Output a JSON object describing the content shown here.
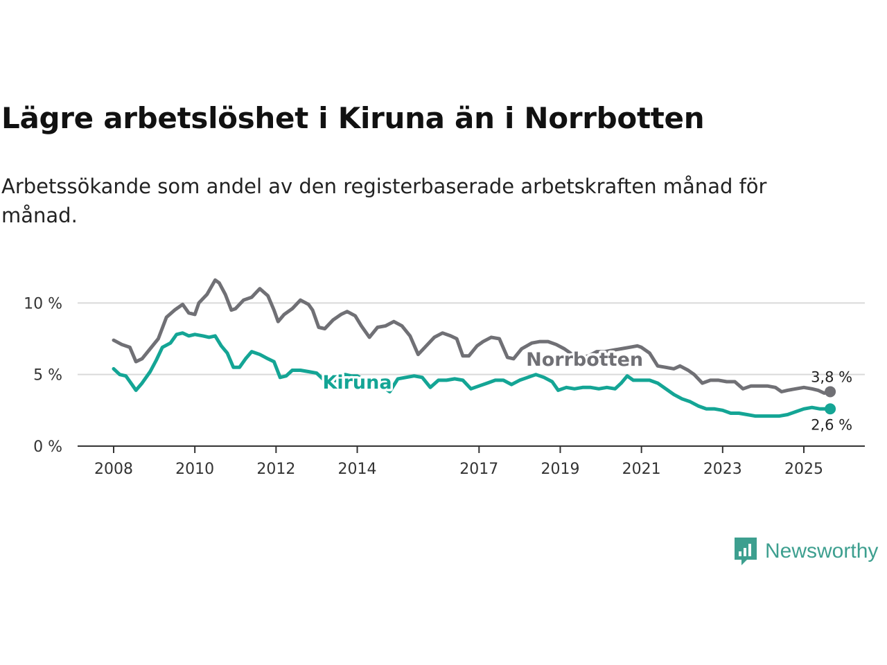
{
  "title": "Lägre arbetslöshet i Kiruna än i Norrbotten",
  "subtitle": "Arbetssökande som andel av den registerbaserade arbetskraften månad för månad.",
  "brand": "Newsworthy",
  "colors": {
    "norrbotten": "#707075",
    "kiruna": "#14a595",
    "grid": "#d9d9d9",
    "axis": "#333333",
    "brand": "#3d9f8f"
  },
  "chart_data": {
    "type": "line",
    "title": "Lägre arbetslöshet i Kiruna än i Norrbotten",
    "xlabel": "",
    "ylabel": "",
    "ylim": [
      0,
      12
    ],
    "xlim": [
      2007.6,
      2026.0
    ],
    "yticks": [
      {
        "value": 0,
        "label": "0 %"
      },
      {
        "value": 5,
        "label": "5 %"
      },
      {
        "value": 10,
        "label": "10 %"
      }
    ],
    "xticks": [
      {
        "value": 2008,
        "label": "2008"
      },
      {
        "value": 2010,
        "label": "2010"
      },
      {
        "value": 2012,
        "label": "2012"
      },
      {
        "value": 2014,
        "label": "2014"
      },
      {
        "value": 2017,
        "label": "2017"
      },
      {
        "value": 2019,
        "label": "2019"
      },
      {
        "value": 2021,
        "label": "2021"
      },
      {
        "value": 2023,
        "label": "2023"
      },
      {
        "value": 2025,
        "label": "2025"
      }
    ],
    "series": [
      {
        "name": "Norrbotten",
        "color": "#707075",
        "end_label": "3,8 %",
        "points": [
          [
            2008.0,
            7.4
          ],
          [
            2008.2,
            7.1
          ],
          [
            2008.4,
            6.9
          ],
          [
            2008.55,
            5.9
          ],
          [
            2008.7,
            6.1
          ],
          [
            2008.9,
            6.8
          ],
          [
            2009.1,
            7.5
          ],
          [
            2009.3,
            9.0
          ],
          [
            2009.5,
            9.5
          ],
          [
            2009.7,
            9.9
          ],
          [
            2009.85,
            9.3
          ],
          [
            2010.0,
            9.2
          ],
          [
            2010.1,
            10.0
          ],
          [
            2010.3,
            10.6
          ],
          [
            2010.5,
            11.6
          ],
          [
            2010.6,
            11.4
          ],
          [
            2010.75,
            10.6
          ],
          [
            2010.9,
            9.5
          ],
          [
            2011.0,
            9.6
          ],
          [
            2011.2,
            10.2
          ],
          [
            2011.4,
            10.4
          ],
          [
            2011.6,
            11.0
          ],
          [
            2011.8,
            10.5
          ],
          [
            2011.95,
            9.5
          ],
          [
            2012.05,
            8.7
          ],
          [
            2012.2,
            9.2
          ],
          [
            2012.4,
            9.6
          ],
          [
            2012.6,
            10.2
          ],
          [
            2012.8,
            9.9
          ],
          [
            2012.9,
            9.5
          ],
          [
            2013.05,
            8.3
          ],
          [
            2013.2,
            8.2
          ],
          [
            2013.4,
            8.8
          ],
          [
            2013.6,
            9.2
          ],
          [
            2013.75,
            9.4
          ],
          [
            2013.95,
            9.1
          ],
          [
            2014.1,
            8.4
          ],
          [
            2014.3,
            7.6
          ],
          [
            2014.5,
            8.3
          ],
          [
            2014.7,
            8.4
          ],
          [
            2014.9,
            8.7
          ],
          [
            2015.1,
            8.4
          ],
          [
            2015.3,
            7.7
          ],
          [
            2015.5,
            6.4
          ],
          [
            2015.7,
            7.0
          ],
          [
            2015.9,
            7.6
          ],
          [
            2016.1,
            7.9
          ],
          [
            2016.3,
            7.7
          ],
          [
            2016.45,
            7.5
          ],
          [
            2016.6,
            6.3
          ],
          [
            2016.75,
            6.3
          ],
          [
            2016.95,
            7.0
          ],
          [
            2017.1,
            7.3
          ],
          [
            2017.3,
            7.6
          ],
          [
            2017.5,
            7.5
          ],
          [
            2017.7,
            6.2
          ],
          [
            2017.85,
            6.1
          ],
          [
            2018.05,
            6.8
          ],
          [
            2018.3,
            7.2
          ],
          [
            2018.5,
            7.3
          ],
          [
            2018.7,
            7.3
          ],
          [
            2018.9,
            7.1
          ],
          [
            2019.1,
            6.8
          ],
          [
            2019.3,
            6.4
          ],
          [
            2019.5,
            6.2
          ],
          [
            2019.7,
            6.3
          ],
          [
            2019.9,
            6.6
          ],
          [
            2020.1,
            6.6
          ],
          [
            2020.3,
            6.7
          ],
          [
            2020.5,
            6.8
          ],
          [
            2020.7,
            6.9
          ],
          [
            2020.9,
            7.0
          ],
          [
            2021.0,
            6.9
          ],
          [
            2021.2,
            6.5
          ],
          [
            2021.4,
            5.6
          ],
          [
            2021.6,
            5.5
          ],
          [
            2021.8,
            5.4
          ],
          [
            2021.95,
            5.6
          ],
          [
            2022.15,
            5.3
          ],
          [
            2022.3,
            5.0
          ],
          [
            2022.5,
            4.4
          ],
          [
            2022.7,
            4.6
          ],
          [
            2022.9,
            4.6
          ],
          [
            2023.1,
            4.5
          ],
          [
            2023.3,
            4.5
          ],
          [
            2023.5,
            4.0
          ],
          [
            2023.7,
            4.2
          ],
          [
            2023.9,
            4.2
          ],
          [
            2024.1,
            4.2
          ],
          [
            2024.3,
            4.1
          ],
          [
            2024.45,
            3.8
          ],
          [
            2024.6,
            3.9
          ],
          [
            2024.8,
            4.0
          ],
          [
            2025.0,
            4.1
          ],
          [
            2025.2,
            4.0
          ],
          [
            2025.35,
            3.9
          ],
          [
            2025.5,
            3.7
          ],
          [
            2025.65,
            3.8
          ]
        ]
      },
      {
        "name": "Kiruna",
        "color": "#14a595",
        "end_label": "2,6 %",
        "points": [
          [
            2008.0,
            5.4
          ],
          [
            2008.15,
            5.0
          ],
          [
            2008.3,
            4.9
          ],
          [
            2008.45,
            4.3
          ],
          [
            2008.55,
            3.9
          ],
          [
            2008.7,
            4.4
          ],
          [
            2008.9,
            5.2
          ],
          [
            2009.05,
            6.0
          ],
          [
            2009.2,
            6.9
          ],
          [
            2009.4,
            7.2
          ],
          [
            2009.55,
            7.8
          ],
          [
            2009.7,
            7.9
          ],
          [
            2009.85,
            7.7
          ],
          [
            2010.0,
            7.8
          ],
          [
            2010.2,
            7.7
          ],
          [
            2010.35,
            7.6
          ],
          [
            2010.5,
            7.7
          ],
          [
            2010.65,
            7.0
          ],
          [
            2010.8,
            6.5
          ],
          [
            2010.95,
            5.5
          ],
          [
            2011.1,
            5.5
          ],
          [
            2011.25,
            6.1
          ],
          [
            2011.4,
            6.6
          ],
          [
            2011.6,
            6.4
          ],
          [
            2011.8,
            6.1
          ],
          [
            2011.95,
            5.9
          ],
          [
            2012.1,
            4.8
          ],
          [
            2012.25,
            4.9
          ],
          [
            2012.4,
            5.3
          ],
          [
            2012.6,
            5.3
          ],
          [
            2012.8,
            5.2
          ],
          [
            2013.0,
            5.1
          ],
          [
            2013.15,
            4.7
          ],
          [
            2013.3,
            4.2
          ],
          [
            2013.5,
            4.7
          ],
          [
            2013.7,
            5.0
          ],
          [
            2013.85,
            4.9
          ],
          [
            2014.0,
            4.9
          ],
          [
            2014.2,
            4.6
          ],
          [
            2014.4,
            4.7
          ],
          [
            2014.6,
            4.2
          ],
          [
            2014.8,
            3.8
          ],
          [
            2015.0,
            4.7
          ],
          [
            2015.2,
            4.8
          ],
          [
            2015.4,
            4.9
          ],
          [
            2015.6,
            4.8
          ],
          [
            2015.8,
            4.1
          ],
          [
            2016.0,
            4.6
          ],
          [
            2016.2,
            4.6
          ],
          [
            2016.4,
            4.7
          ],
          [
            2016.6,
            4.6
          ],
          [
            2016.8,
            4.0
          ],
          [
            2017.0,
            4.2
          ],
          [
            2017.2,
            4.4
          ],
          [
            2017.4,
            4.6
          ],
          [
            2017.6,
            4.6
          ],
          [
            2017.8,
            4.3
          ],
          [
            2018.0,
            4.6
          ],
          [
            2018.2,
            4.8
          ],
          [
            2018.4,
            5.0
          ],
          [
            2018.6,
            4.8
          ],
          [
            2018.8,
            4.5
          ],
          [
            2018.95,
            3.9
          ],
          [
            2019.15,
            4.1
          ],
          [
            2019.35,
            4.0
          ],
          [
            2019.55,
            4.1
          ],
          [
            2019.75,
            4.1
          ],
          [
            2019.95,
            4.0
          ],
          [
            2020.15,
            4.1
          ],
          [
            2020.35,
            4.0
          ],
          [
            2020.5,
            4.4
          ],
          [
            2020.65,
            4.9
          ],
          [
            2020.8,
            4.6
          ],
          [
            2021.0,
            4.6
          ],
          [
            2021.2,
            4.6
          ],
          [
            2021.4,
            4.4
          ],
          [
            2021.6,
            4.0
          ],
          [
            2021.8,
            3.6
          ],
          [
            2022.0,
            3.3
          ],
          [
            2022.2,
            3.1
          ],
          [
            2022.4,
            2.8
          ],
          [
            2022.6,
            2.6
          ],
          [
            2022.8,
            2.6
          ],
          [
            2023.0,
            2.5
          ],
          [
            2023.2,
            2.3
          ],
          [
            2023.4,
            2.3
          ],
          [
            2023.6,
            2.2
          ],
          [
            2023.8,
            2.1
          ],
          [
            2024.0,
            2.1
          ],
          [
            2024.2,
            2.1
          ],
          [
            2024.4,
            2.1
          ],
          [
            2024.6,
            2.2
          ],
          [
            2024.8,
            2.4
          ],
          [
            2025.0,
            2.6
          ],
          [
            2025.2,
            2.7
          ],
          [
            2025.4,
            2.6
          ],
          [
            2025.65,
            2.6
          ]
        ]
      }
    ],
    "annotations": [
      {
        "text": "Norrbotten",
        "series": "Norrbotten",
        "x": 2019.6,
        "y": 6.2
      },
      {
        "text": "Kiruna",
        "series": "Kiruna",
        "x": 2014.0,
        "y": 4.6
      }
    ]
  }
}
